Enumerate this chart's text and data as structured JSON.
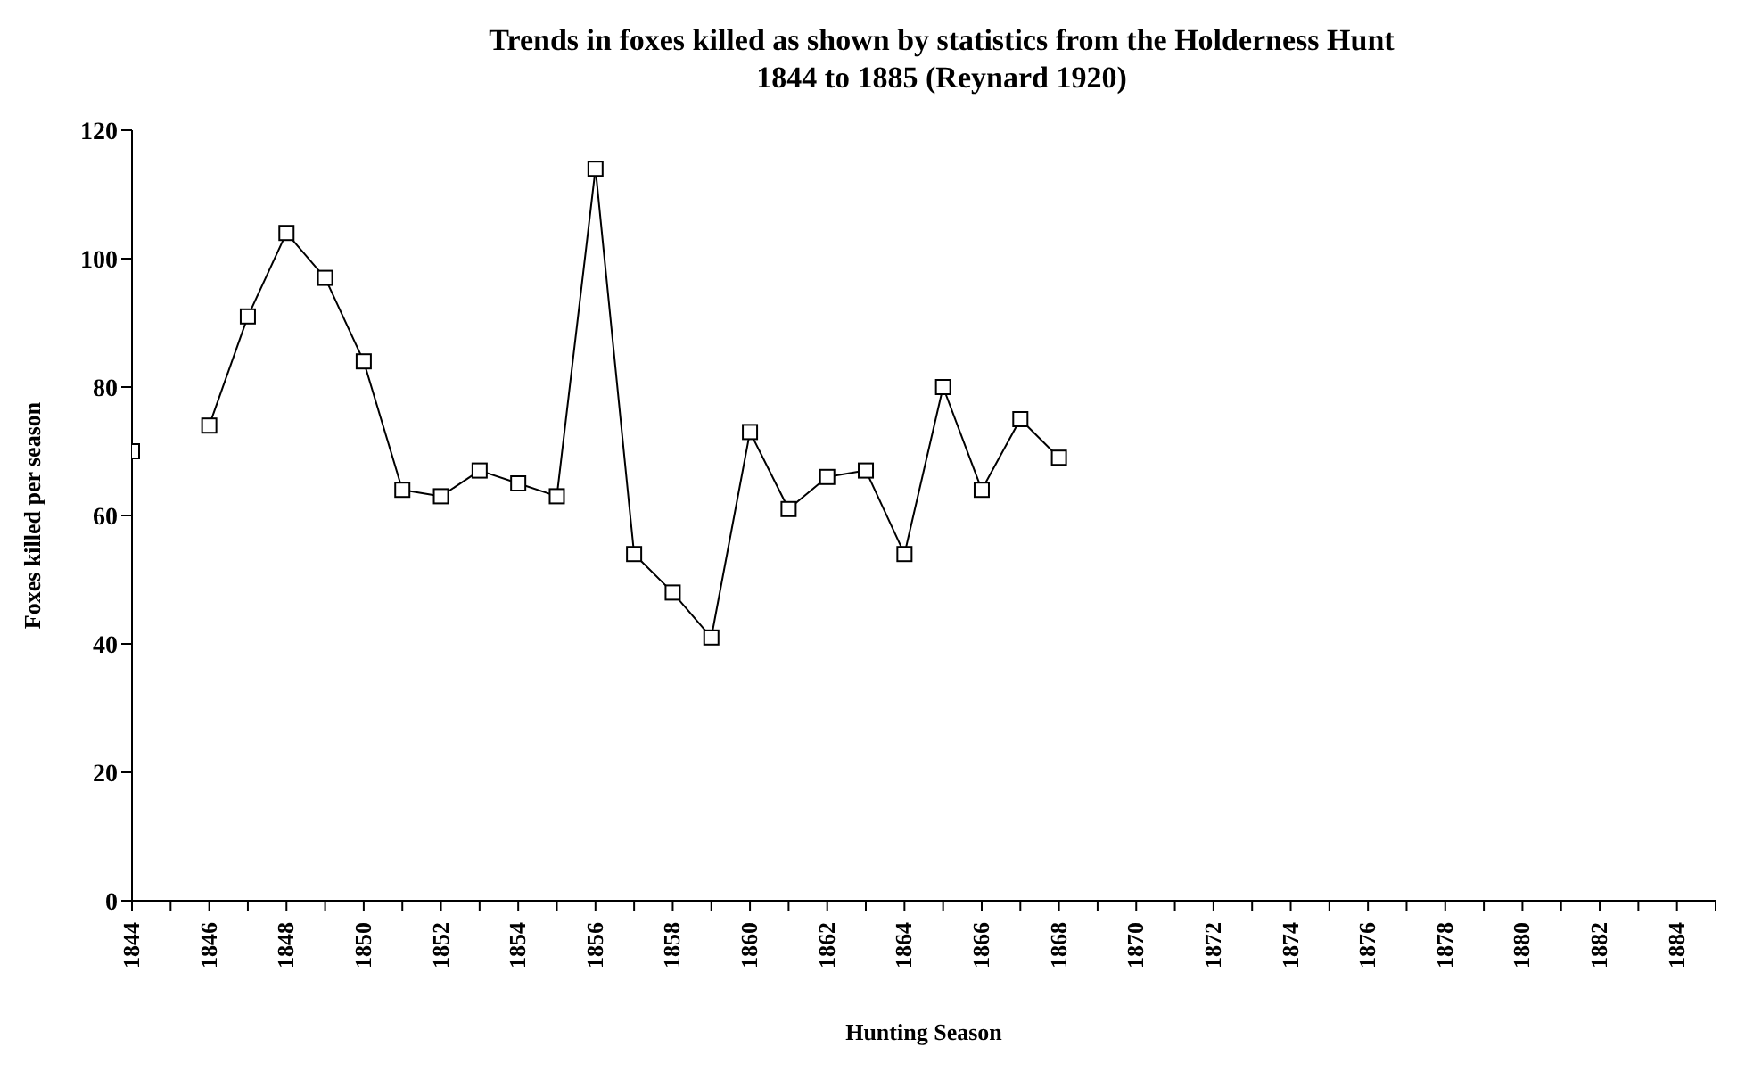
{
  "chart_data": {
    "type": "line",
    "title": "Trends in foxes killed as shown by statistics from the Holderness Hunt\n1844 to 1885 (Reynard 1920)",
    "xlabel": "Hunting Season",
    "ylabel": "Foxes killed per season",
    "x": [
      1844,
      1845,
      1846,
      1847,
      1848,
      1849,
      1850,
      1851,
      1852,
      1853,
      1854,
      1855,
      1856,
      1857,
      1858,
      1859,
      1860,
      1861,
      1862,
      1863,
      1864,
      1865,
      1866,
      1867,
      1868
    ],
    "series": [
      {
        "color": "#000000",
        "values": [
          70,
          null,
          74,
          91,
          104,
          97,
          84,
          64,
          63,
          67,
          65,
          63,
          114,
          54,
          48,
          41,
          73,
          61,
          66,
          67,
          54,
          80,
          64,
          75,
          69
        ]
      }
    ],
    "xlim": [
      1844,
      1885
    ],
    "xticks": [
      1844,
      {
        "value": 1845,
        "label": null
      },
      1846,
      {
        "value": 1847,
        "label": null
      },
      1848,
      {
        "value": 1849,
        "label": null
      },
      1850,
      {
        "value": 1851,
        "label": null
      },
      1852,
      {
        "value": 1853,
        "label": null
      },
      1854,
      {
        "value": 1855,
        "label": null
      },
      1856,
      {
        "value": 1857,
        "label": null
      },
      1858,
      {
        "value": 1859,
        "label": null
      },
      1860,
      {
        "value": 1861,
        "label": null
      },
      1862,
      {
        "value": 1863,
        "label": null
      },
      1864,
      {
        "value": 1865,
        "label": null
      },
      1866,
      {
        "value": 1867,
        "label": null
      },
      1868,
      {
        "value": 1869,
        "label": null
      },
      1870,
      {
        "value": 1871,
        "label": null
      },
      1872,
      {
        "value": 1873,
        "label": null
      },
      1874,
      {
        "value": 1875,
        "label": null
      },
      1876,
      {
        "value": 1877,
        "label": null
      },
      1878,
      {
        "value": 1879,
        "label": null
      },
      1880,
      {
        "value": 1881,
        "label": null
      },
      1882,
      {
        "value": 1883,
        "label": null
      },
      1884,
      {
        "value": 1885,
        "label": null
      }
    ],
    "ylim": [
      0,
      120
    ],
    "yticks": [
      0,
      20,
      40,
      60,
      80,
      100,
      120
    ],
    "grid": false,
    "legend": false,
    "marker": "square",
    "line_style": "solid"
  }
}
